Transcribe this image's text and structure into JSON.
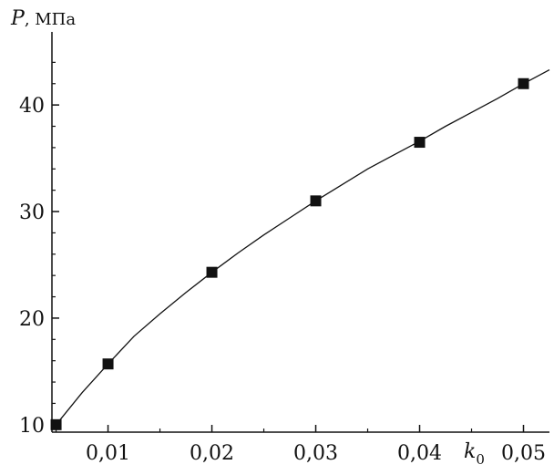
{
  "chart_data": {
    "type": "scatter",
    "title": "",
    "xlabel": "k0",
    "ylabel": "P, МПа",
    "ylabel_symbol": "P",
    "ylabel_unit": ", МПа",
    "xlabel_symbol": "k",
    "xlabel_subscript": "0",
    "xlim": [
      0.0046,
      0.0525
    ],
    "ylim": [
      9.3,
      46
    ],
    "x_ticks": [
      0.01,
      0.02,
      0.03,
      0.04,
      0.05
    ],
    "x_tick_labels": [
      "0,01",
      "0,02",
      "0,03",
      "0,04",
      "0,05"
    ],
    "y_ticks": [
      10,
      20,
      30,
      40
    ],
    "y_tick_labels": [
      "10",
      "20",
      "30",
      "40"
    ],
    "grid": false,
    "series": [
      {
        "marker": "square",
        "color": "#111111",
        "x": [
          0.005,
          0.01,
          0.02,
          0.03,
          0.04,
          0.05
        ],
        "y": [
          10.0,
          15.7,
          24.3,
          31.0,
          36.5,
          42.0
        ]
      },
      {
        "kind": "fit-line",
        "color": "#111111",
        "x": [
          0.005,
          0.0075,
          0.01,
          0.0125,
          0.015,
          0.0175,
          0.02,
          0.0225,
          0.025,
          0.0275,
          0.03,
          0.0325,
          0.035,
          0.0375,
          0.04,
          0.0425,
          0.045,
          0.0475,
          0.05,
          0.0525
        ],
        "y": [
          10.0,
          13.0,
          15.7,
          18.3,
          20.4,
          22.4,
          24.3,
          26.1,
          27.8,
          29.4,
          31.0,
          32.5,
          34.0,
          35.3,
          36.6,
          38.0,
          39.3,
          40.6,
          42.0,
          43.3
        ]
      }
    ]
  }
}
